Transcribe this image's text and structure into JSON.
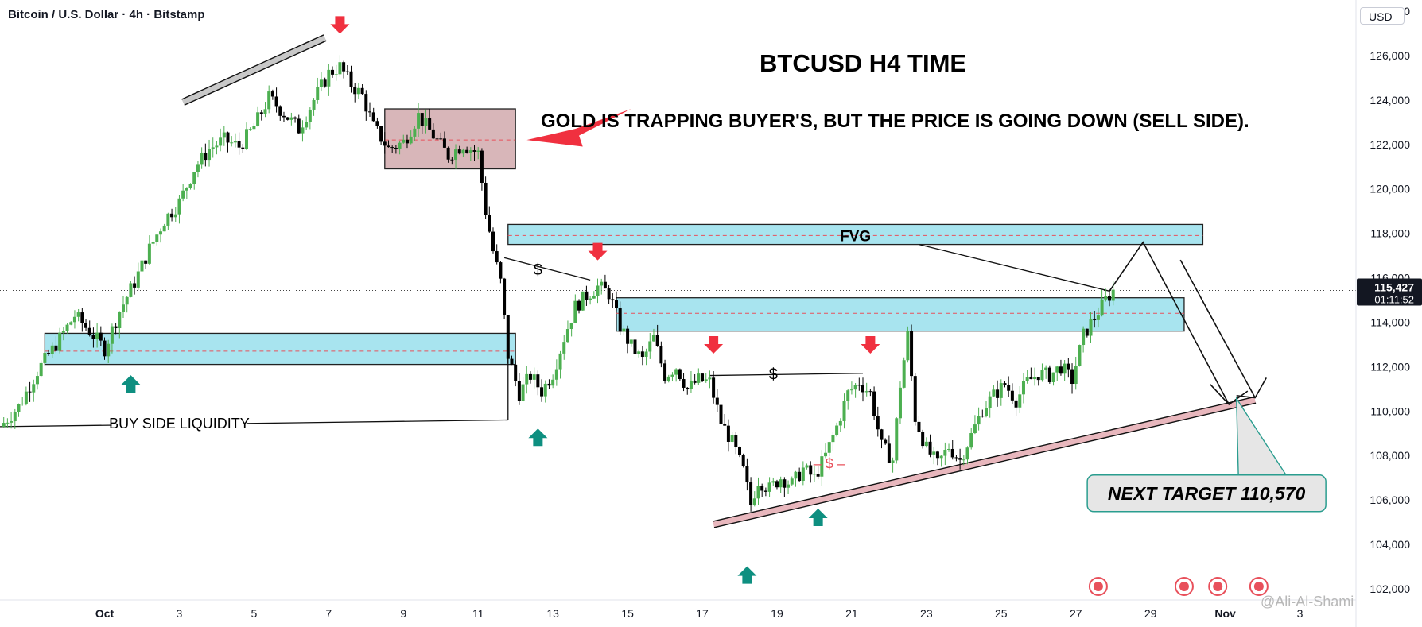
{
  "header": {
    "symbol": "Bitcoin / U.S. Dollar · 4h · Bitstamp",
    "currency": "USD"
  },
  "price_scale": {
    "current_price": "115,427",
    "countdown": "01:11:52"
  },
  "watermark": "@Ali-Al-Shami",
  "colors": {
    "bull": "#26a69a",
    "bull_candle": "#4caf50",
    "bear": "#000000",
    "zone_fill": "#a8e4ef",
    "supply_fill": "#d8b6b9",
    "arrow_red": "#f0303f",
    "arrow_teal": "#0e8f80"
  },
  "chart_data": {
    "type": "candlestick",
    "title": "BTCUSD H4 TIME",
    "subtitle": "GOLD IS TRAPPING BUYER'S, BUT THE PRICE IS GOING DOWN (SELL SIDE).",
    "ylim": [
      101500,
      128500
    ],
    "y_ticks": [
      102000,
      104000,
      106000,
      108000,
      110000,
      112000,
      114000,
      116000,
      118000,
      120000,
      122000,
      124000,
      126000,
      128000
    ],
    "x_tick_labels": [
      "Oct",
      "3",
      "5",
      "7",
      "9",
      "11",
      "13",
      "15",
      "17",
      "19",
      "21",
      "23",
      "25",
      "27",
      "29",
      "Nov",
      "3"
    ],
    "x_tick_days": [
      0,
      2,
      4,
      6,
      8,
      10,
      12,
      14,
      16,
      18,
      20,
      22,
      24,
      26,
      28,
      30,
      32
    ],
    "x_range_days": [
      -2.8,
      33.5
    ],
    "current_price": 115427,
    "price_path": [
      [
        -2.8,
        109300
      ],
      [
        -2.3,
        110200
      ],
      [
        -1.8,
        111800
      ],
      [
        -1.3,
        113000
      ],
      [
        -0.8,
        114300
      ],
      [
        -0.4,
        113600
      ],
      [
        0,
        112800
      ],
      [
        0.4,
        114500
      ],
      [
        0.8,
        115800
      ],
      [
        1.2,
        117300
      ],
      [
        1.6,
        118600
      ],
      [
        2.0,
        119400
      ],
      [
        2.4,
        120900
      ],
      [
        2.8,
        121800
      ],
      [
        3.2,
        122200
      ],
      [
        3.6,
        121900
      ],
      [
        4.0,
        122800
      ],
      [
        4.4,
        124100
      ],
      [
        4.8,
        123400
      ],
      [
        5.2,
        122700
      ],
      [
        5.6,
        124000
      ],
      [
        6.0,
        125200
      ],
      [
        6.3,
        125500
      ],
      [
        6.6,
        124700
      ],
      [
        6.9,
        124200
      ],
      [
        7.2,
        122800
      ],
      [
        7.6,
        121800
      ],
      [
        8.0,
        122100
      ],
      [
        8.4,
        123300
      ],
      [
        8.8,
        122400
      ],
      [
        9.2,
        121500
      ],
      [
        9.6,
        122000
      ],
      [
        10.0,
        121600
      ],
      [
        10.2,
        119000
      ],
      [
        10.4,
        117200
      ],
      [
        10.6,
        115800
      ],
      [
        10.8,
        112500
      ],
      [
        11.1,
        110800
      ],
      [
        11.4,
        111600
      ],
      [
        11.7,
        110900
      ],
      [
        12.0,
        111700
      ],
      [
        12.3,
        113300
      ],
      [
        12.6,
        114700
      ],
      [
        12.9,
        115200
      ],
      [
        13.2,
        115600
      ],
      [
        13.5,
        115300
      ],
      [
        13.8,
        113800
      ],
      [
        14.1,
        112900
      ],
      [
        14.4,
        112300
      ],
      [
        14.7,
        113300
      ],
      [
        15.0,
        111600
      ],
      [
        15.3,
        112000
      ],
      [
        15.6,
        111000
      ],
      [
        15.9,
        111400
      ],
      [
        16.2,
        111300
      ],
      [
        16.5,
        109500
      ],
      [
        16.8,
        108600
      ],
      [
        17.1,
        107300
      ],
      [
        17.3,
        105800
      ],
      [
        17.5,
        106900
      ],
      [
        17.8,
        106500
      ],
      [
        18.1,
        107000
      ],
      [
        18.4,
        106700
      ],
      [
        18.7,
        107400
      ],
      [
        19.0,
        107000
      ],
      [
        19.3,
        108000
      ],
      [
        19.6,
        109300
      ],
      [
        19.9,
        110800
      ],
      [
        20.2,
        111300
      ],
      [
        20.5,
        110800
      ],
      [
        20.8,
        108400
      ],
      [
        21.1,
        107800
      ],
      [
        21.3,
        111200
      ],
      [
        21.5,
        113400
      ],
      [
        21.7,
        109700
      ],
      [
        22.0,
        108300
      ],
      [
        22.3,
        107600
      ],
      [
        22.6,
        108400
      ],
      [
        22.9,
        107800
      ],
      [
        23.2,
        108900
      ],
      [
        23.5,
        110100
      ],
      [
        23.8,
        110700
      ],
      [
        24.1,
        111200
      ],
      [
        24.4,
        110500
      ],
      [
        24.7,
        111300
      ],
      [
        25.0,
        111700
      ],
      [
        25.3,
        111600
      ],
      [
        25.6,
        112000
      ],
      [
        25.9,
        111400
      ],
      [
        26.2,
        113400
      ],
      [
        26.5,
        114200
      ],
      [
        26.8,
        115000
      ],
      [
        27.0,
        115427
      ]
    ],
    "zones": [
      {
        "type": "supply",
        "day_start": 7.5,
        "day_end": 11.0,
        "price_low": 120900,
        "price_high": 123600,
        "mid": 122200
      },
      {
        "type": "fvg",
        "label": "FVG",
        "day_start": 10.8,
        "day_end": 29.4,
        "price_low": 117500,
        "price_high": 118400,
        "mid": 117900
      },
      {
        "type": "demand",
        "day_start": 13.7,
        "day_end": 28.9,
        "price_low": 113600,
        "price_high": 115100,
        "mid": 114400
      },
      {
        "type": "demand",
        "day_start": -1.6,
        "day_end": 11.0,
        "price_low": 112100,
        "price_high": 113500,
        "mid": 112700
      }
    ],
    "trendlines": [
      {
        "from": [
          16.3,
          104900
        ],
        "to": [
          30.8,
          110500
        ],
        "style": "channel-pink"
      },
      {
        "from": [
          2.1,
          123900
        ],
        "to": [
          5.9,
          126800
        ],
        "style": "channel-gray"
      }
    ],
    "annotations": [
      {
        "text": "BUY SIDE LIQUIDITY",
        "day": 2.0,
        "price": 109400
      },
      {
        "text": "$",
        "day": 11.6,
        "price": 116300
      },
      {
        "text": "$",
        "day": 17.9,
        "price": 111600
      },
      {
        "text": "– $ –",
        "day": 19.4,
        "price": 107600,
        "color": "red"
      },
      {
        "text": "NEXT TARGET 110,570",
        "day": 29.5,
        "price": 106300,
        "target": 110570
      }
    ],
    "sell_arrows": [
      [
        6.3,
        127200
      ],
      [
        13.2,
        117000
      ],
      [
        16.3,
        112800
      ],
      [
        20.5,
        112800
      ]
    ],
    "buy_arrows": [
      [
        0.7,
        111400
      ],
      [
        11.6,
        109000
      ],
      [
        19.1,
        105400
      ],
      [
        17.2,
        102800
      ]
    ]
  }
}
